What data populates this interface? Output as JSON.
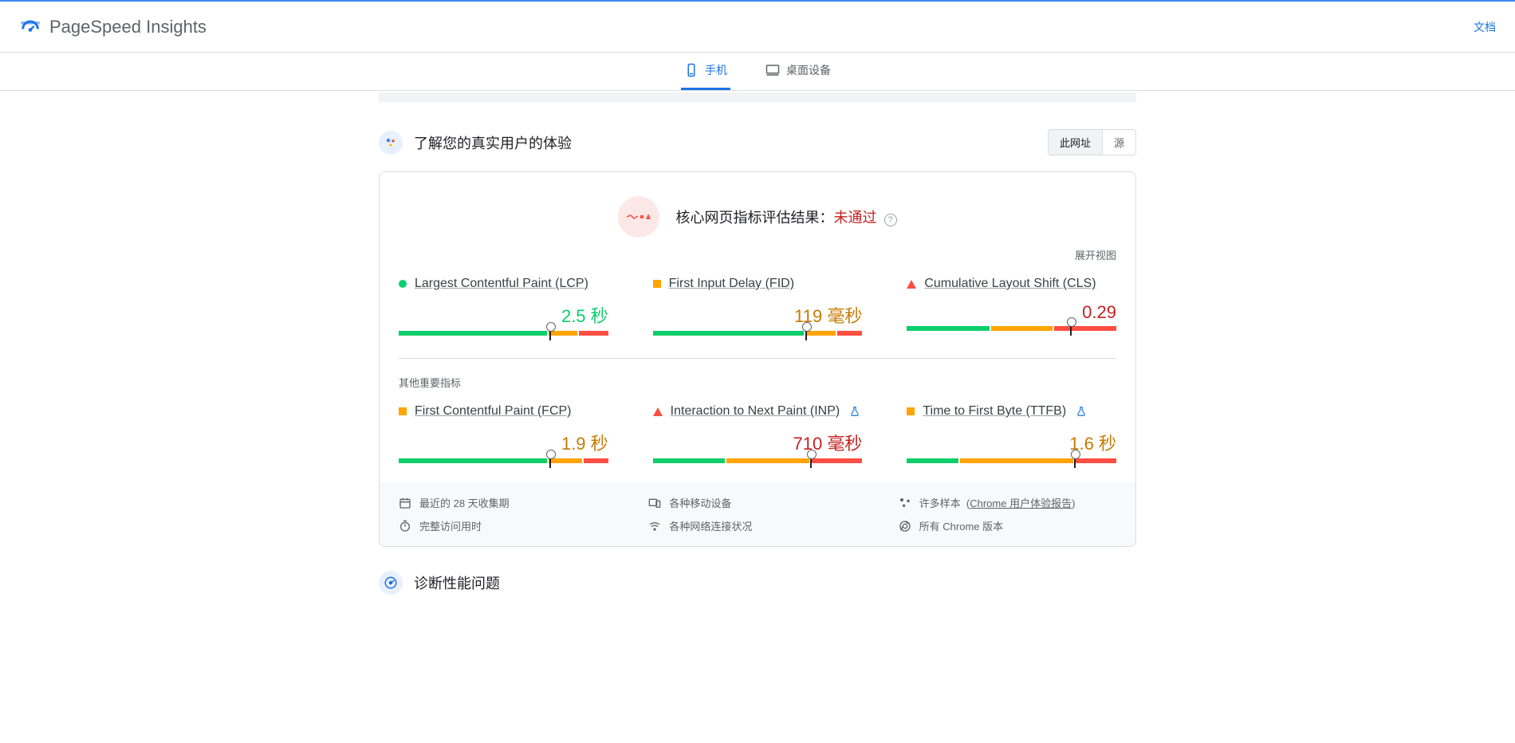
{
  "header": {
    "title": "PageSpeed Insights",
    "docs_link": "文档"
  },
  "tabs": {
    "mobile": "手机",
    "desktop": "桌面设备"
  },
  "section": {
    "experience_title": "了解您的真实用户的体验",
    "toggle_url": "此网址",
    "toggle_origin": "源"
  },
  "assessment": {
    "prefix": "核心网页指标评估结果：",
    "status": "未通过",
    "expand": "展开视图"
  },
  "metrics": {
    "lcp": {
      "name": "Largest Contentful Paint (LCP)",
      "value": "2.5 秒",
      "status": "good",
      "segments": [
        72,
        14,
        14
      ],
      "marker": 72
    },
    "fid": {
      "name": "First Input Delay (FID)",
      "value": "119 毫秒",
      "status": "warn",
      "segments": [
        73,
        15,
        12
      ],
      "marker": 73
    },
    "cls": {
      "name": "Cumulative Layout Shift (CLS)",
      "value": "0.29",
      "status": "poor",
      "segments": [
        40,
        30,
        30
      ],
      "marker": 78
    },
    "fcp": {
      "name": "First Contentful Paint (FCP)",
      "value": "1.9 秒",
      "status": "warn",
      "segments": [
        72,
        16,
        12
      ],
      "marker": 72
    },
    "inp": {
      "name": "Interaction to Next Paint (INP)",
      "value": "710 毫秒",
      "status": "poor",
      "segments": [
        35,
        40,
        25
      ],
      "marker": 75,
      "experimental": true
    },
    "ttfb": {
      "name": "Time to First Byte (TTFB)",
      "value": "1.6 秒",
      "status": "warn",
      "segments": [
        25,
        55,
        20
      ],
      "marker": 80,
      "experimental": true
    }
  },
  "other_metrics_label": "其他重要指标",
  "footer": {
    "period": "最近的 28 天收集期",
    "devices": "各种移动设备",
    "samples_prefix": "许多样本",
    "samples_link": "Chrome 用户体验报告",
    "session": "完整访问用时",
    "network": "各种网络连接状况",
    "chrome": "所有 Chrome 版本"
  },
  "diagnose": {
    "title": "诊断性能问题"
  },
  "colors": {
    "good": "#0cce6b",
    "warn": "#ffa400",
    "poor": "#ff4e42",
    "primary": "#1a73e8"
  }
}
